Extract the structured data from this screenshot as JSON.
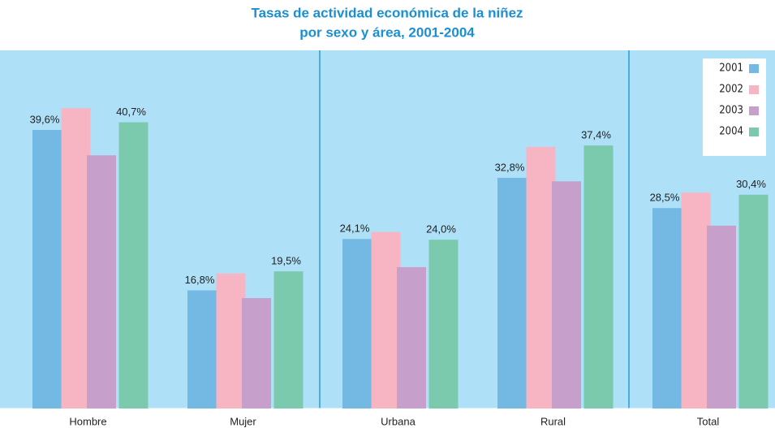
{
  "chart_data": {
    "type": "bar",
    "title": [
      "Tasas de actividad económica de la niñez",
      "por sexo y área, 2001-2004"
    ],
    "categories": [
      "Hombre",
      "Mujer",
      "Urbana",
      "Rural",
      "Total"
    ],
    "series": [
      {
        "name": "2001",
        "color": "#74b8e4",
        "values": [
          39.6,
          16.8,
          24.1,
          32.8,
          28.5
        ],
        "value_labels": [
          "39,6%",
          "16,8%",
          "24,1%",
          "32,8%",
          "28,5%"
        ]
      },
      {
        "name": "2002",
        "color": "#f7b5c4",
        "values": [
          42.7,
          19.2,
          25.1,
          37.2,
          30.7
        ],
        "value_labels": [
          null,
          null,
          null,
          null,
          null
        ]
      },
      {
        "name": "2003",
        "color": "#c79fcb",
        "values": [
          36.0,
          15.7,
          20.1,
          32.3,
          26.0
        ],
        "value_labels": [
          null,
          null,
          null,
          null,
          null
        ]
      },
      {
        "name": "2004",
        "color": "#7bcaae",
        "values": [
          40.7,
          19.5,
          24.0,
          37.4,
          30.4
        ],
        "value_labels": [
          "40,7%",
          "19,5%",
          "24,0%",
          "37,4%",
          "30,4%"
        ]
      }
    ],
    "legend": "top-right"
  }
}
